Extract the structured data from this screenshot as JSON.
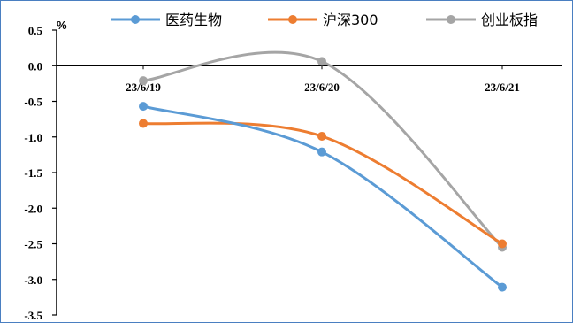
{
  "chart_data": {
    "type": "line",
    "unit_label": "%",
    "categories": [
      "23/6/19",
      "23/6/20",
      "23/6/21"
    ],
    "ylim": [
      -3.5,
      0.5
    ],
    "yticks": [
      "0.5",
      "0.0",
      "-0.5",
      "-1.0",
      "-1.5",
      "-2.0",
      "-2.5",
      "-3.0",
      "-3.5"
    ],
    "ytick_values": [
      0.5,
      0.0,
      -0.5,
      -1.0,
      -1.5,
      -2.0,
      -2.5,
      -3.0,
      -3.5
    ],
    "legend_position": "top",
    "grid": false,
    "series": [
      {
        "name": "医药生物",
        "color": "#5b9bd5",
        "values": [
          -0.57,
          -1.21,
          -3.11
        ]
      },
      {
        "name": "沪深300",
        "color": "#ed7d31",
        "values": [
          -0.81,
          -0.99,
          -2.5
        ]
      },
      {
        "name": "创业板指",
        "color": "#a5a5a5",
        "values": [
          -0.21,
          0.06,
          -2.55
        ]
      }
    ]
  }
}
